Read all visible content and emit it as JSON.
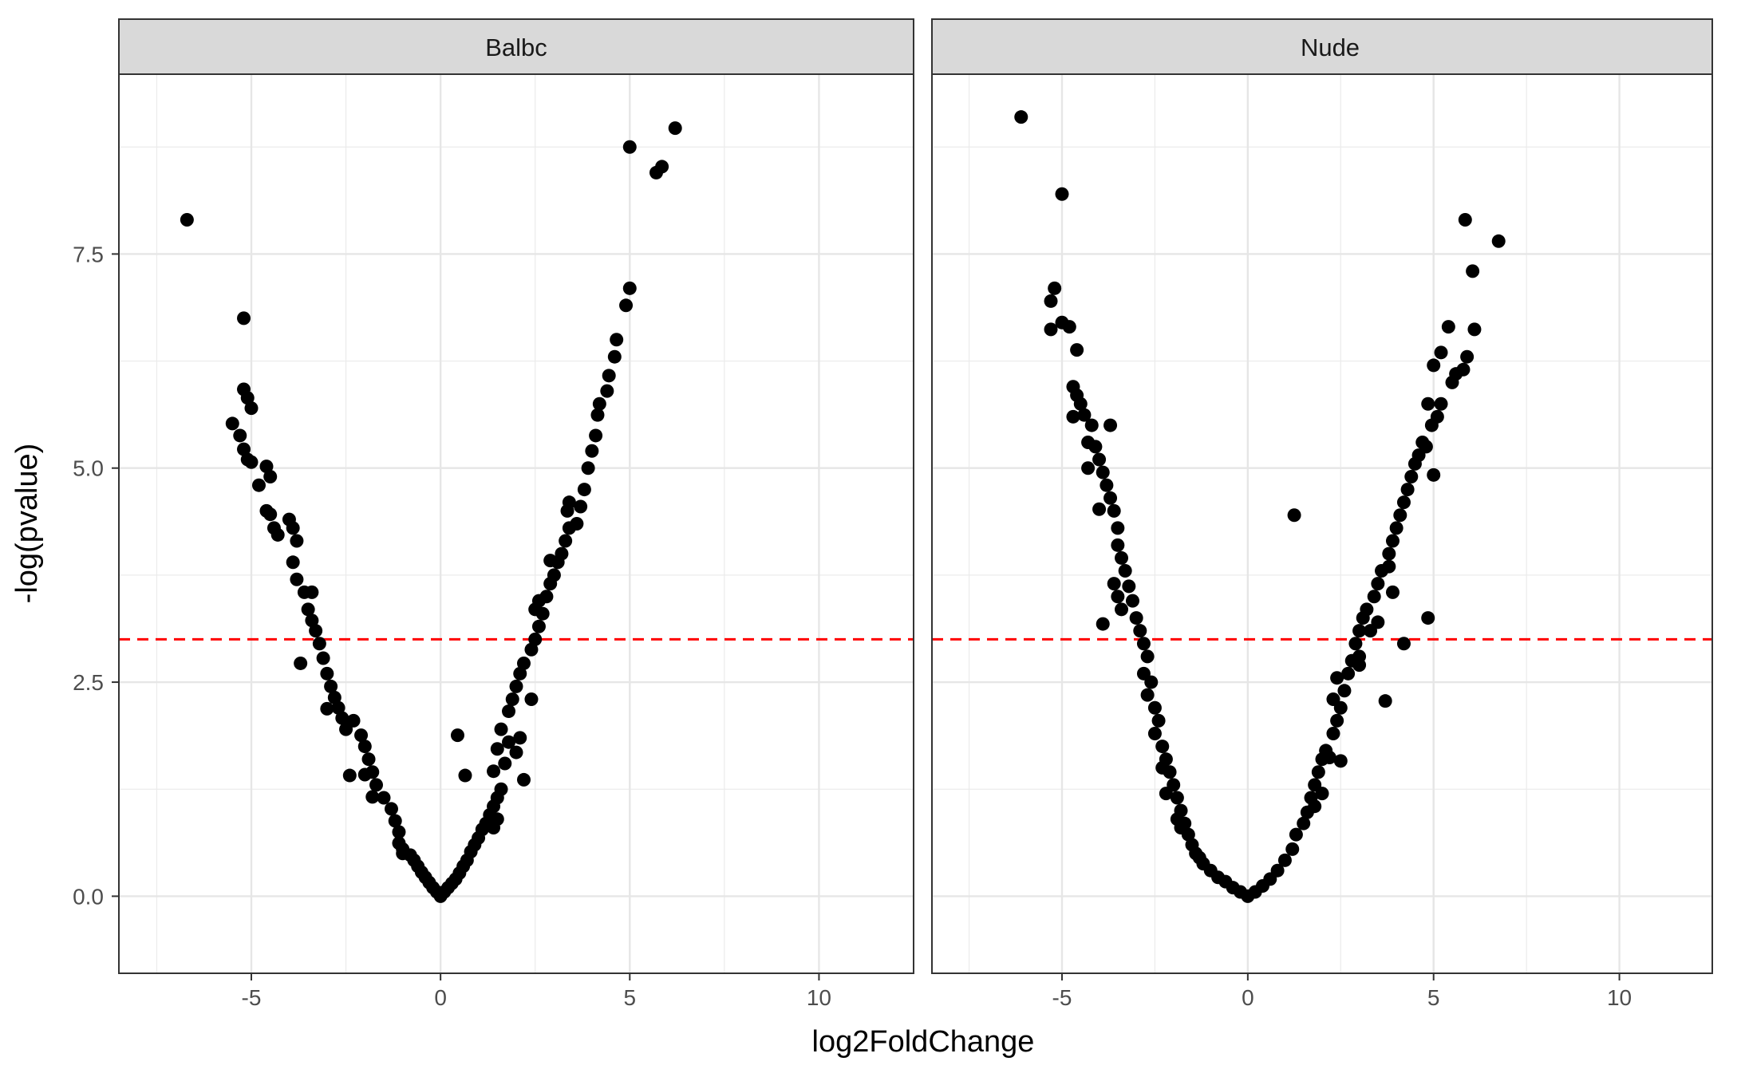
{
  "chart_data": {
    "type": "scatter",
    "xlabel": "log2FoldChange",
    "ylabel": "-log(pvalue)",
    "xlim": [
      -8.5,
      12.5
    ],
    "ylim": [
      -0.9,
      9.6
    ],
    "x_ticks": [
      -5,
      0,
      5,
      10
    ],
    "x_tick_labels": [
      "-5",
      "0",
      "5",
      "10"
    ],
    "y_ticks": [
      0,
      2.5,
      5,
      7.5
    ],
    "y_tick_labels": [
      "0.0",
      "2.5",
      "5.0",
      "7.5"
    ],
    "grid": true,
    "threshold_line": {
      "y": 3,
      "style": "dashed",
      "color": "#ff0000"
    },
    "point_color": "#000000",
    "panels": [
      {
        "name": "Balbc",
        "points": [
          [
            -6.7,
            7.9
          ],
          [
            -5.2,
            6.75
          ],
          [
            -5.2,
            5.92
          ],
          [
            -5.1,
            5.82
          ],
          [
            -5.0,
            5.7
          ],
          [
            -5.5,
            5.52
          ],
          [
            -5.3,
            5.38
          ],
          [
            -5.2,
            5.22
          ],
          [
            -5.1,
            5.1
          ],
          [
            -5.0,
            5.07
          ],
          [
            -4.8,
            4.8
          ],
          [
            -4.6,
            5.02
          ],
          [
            -4.5,
            4.9
          ],
          [
            -4.6,
            4.5
          ],
          [
            -4.5,
            4.46
          ],
          [
            -4.4,
            4.3
          ],
          [
            -4.3,
            4.22
          ],
          [
            -4.0,
            4.4
          ],
          [
            -3.9,
            4.3
          ],
          [
            -3.8,
            4.15
          ],
          [
            -3.9,
            3.9
          ],
          [
            -3.8,
            3.7
          ],
          [
            -3.6,
            3.55
          ],
          [
            -3.4,
            3.55
          ],
          [
            -3.5,
            3.35
          ],
          [
            -3.4,
            3.22
          ],
          [
            -3.3,
            3.1
          ],
          [
            -3.2,
            2.95
          ],
          [
            -3.1,
            2.78
          ],
          [
            -3.7,
            2.72
          ],
          [
            -3.0,
            2.6
          ],
          [
            -2.9,
            2.45
          ],
          [
            -2.8,
            2.32
          ],
          [
            -2.7,
            2.2
          ],
          [
            -3.0,
            2.19
          ],
          [
            -2.6,
            2.08
          ],
          [
            -2.5,
            1.95
          ],
          [
            -2.3,
            2.05
          ],
          [
            -2.1,
            1.88
          ],
          [
            -2.0,
            1.75
          ],
          [
            -1.9,
            1.6
          ],
          [
            -1.8,
            1.45
          ],
          [
            -2.4,
            1.41
          ],
          [
            -2.0,
            1.42
          ],
          [
            -1.7,
            1.3
          ],
          [
            -1.8,
            1.16
          ],
          [
            -1.5,
            1.15
          ],
          [
            -1.3,
            1.02
          ],
          [
            -1.2,
            0.88
          ],
          [
            -1.1,
            0.75
          ],
          [
            -1.1,
            0.62
          ],
          [
            -1.0,
            0.55
          ],
          [
            -1.0,
            0.5
          ],
          [
            -0.8,
            0.48
          ],
          [
            -0.7,
            0.42
          ],
          [
            -0.6,
            0.35
          ],
          [
            -0.5,
            0.28
          ],
          [
            -0.4,
            0.22
          ],
          [
            -0.3,
            0.16
          ],
          [
            -0.2,
            0.1
          ],
          [
            -0.1,
            0.05
          ],
          [
            0.0,
            0.0
          ],
          [
            0.1,
            0.05
          ],
          [
            0.2,
            0.1
          ],
          [
            0.3,
            0.15
          ],
          [
            0.4,
            0.2
          ],
          [
            0.5,
            0.27
          ],
          [
            0.6,
            0.35
          ],
          [
            0.7,
            0.42
          ],
          [
            0.8,
            0.52
          ],
          [
            0.9,
            0.6
          ],
          [
            1.0,
            0.68
          ],
          [
            1.1,
            0.78
          ],
          [
            1.2,
            0.85
          ],
          [
            1.3,
            0.95
          ],
          [
            1.4,
            1.05
          ],
          [
            1.5,
            1.15
          ],
          [
            1.6,
            1.25
          ],
          [
            1.5,
            0.9
          ],
          [
            1.4,
            0.8
          ],
          [
            0.45,
            1.88
          ],
          [
            0.65,
            1.41
          ],
          [
            1.5,
            1.72
          ],
          [
            1.6,
            1.95
          ],
          [
            1.8,
            1.8
          ],
          [
            2.1,
            1.85
          ],
          [
            2.0,
            1.68
          ],
          [
            2.2,
            1.36
          ],
          [
            1.4,
            1.46
          ],
          [
            1.7,
            1.55
          ],
          [
            2.4,
            2.3
          ],
          [
            1.8,
            2.16
          ],
          [
            1.9,
            2.3
          ],
          [
            2.0,
            2.45
          ],
          [
            2.1,
            2.6
          ],
          [
            2.2,
            2.72
          ],
          [
            2.4,
            2.88
          ],
          [
            2.5,
            3.0
          ],
          [
            2.6,
            3.15
          ],
          [
            2.7,
            3.3
          ],
          [
            2.5,
            3.35
          ],
          [
            2.6,
            3.45
          ],
          [
            2.8,
            3.5
          ],
          [
            2.9,
            3.65
          ],
          [
            3.0,
            3.75
          ],
          [
            3.1,
            3.9
          ],
          [
            2.9,
            3.92
          ],
          [
            3.2,
            4.0
          ],
          [
            3.3,
            4.15
          ],
          [
            3.4,
            4.3
          ],
          [
            3.35,
            4.5
          ],
          [
            3.4,
            4.6
          ],
          [
            3.6,
            4.35
          ],
          [
            3.7,
            4.55
          ],
          [
            3.8,
            4.75
          ],
          [
            3.9,
            5.0
          ],
          [
            4.0,
            5.2
          ],
          [
            4.1,
            5.38
          ],
          [
            4.15,
            5.62
          ],
          [
            4.2,
            5.75
          ],
          [
            4.4,
            5.9
          ],
          [
            4.45,
            6.08
          ],
          [
            4.6,
            6.3
          ],
          [
            4.65,
            6.5
          ],
          [
            4.9,
            6.9
          ],
          [
            5.0,
            7.1
          ],
          [
            5.0,
            8.75
          ],
          [
            5.7,
            8.45
          ],
          [
            5.85,
            8.52
          ],
          [
            6.2,
            8.97
          ]
        ]
      },
      {
        "name": "Nude",
        "points": [
          [
            -6.1,
            9.1
          ],
          [
            -5.0,
            8.2
          ],
          [
            -5.2,
            7.1
          ],
          [
            -5.3,
            6.95
          ],
          [
            -5.3,
            6.62
          ],
          [
            -5.0,
            6.7
          ],
          [
            -4.8,
            6.65
          ],
          [
            -4.6,
            6.38
          ],
          [
            -4.7,
            5.95
          ],
          [
            -4.6,
            5.85
          ],
          [
            -4.5,
            5.75
          ],
          [
            -4.7,
            5.6
          ],
          [
            -4.4,
            5.62
          ],
          [
            -4.2,
            5.5
          ],
          [
            -3.7,
            5.5
          ],
          [
            -4.3,
            5.3
          ],
          [
            -4.1,
            5.25
          ],
          [
            -4.0,
            5.1
          ],
          [
            -4.3,
            5.0
          ],
          [
            -3.9,
            4.95
          ],
          [
            -3.8,
            4.8
          ],
          [
            -3.7,
            4.65
          ],
          [
            -4.0,
            4.52
          ],
          [
            -3.6,
            4.5
          ],
          [
            -3.5,
            4.3
          ],
          [
            -3.5,
            4.1
          ],
          [
            -3.4,
            3.95
          ],
          [
            -3.3,
            3.8
          ],
          [
            -3.2,
            3.62
          ],
          [
            -3.6,
            3.65
          ],
          [
            -3.5,
            3.5
          ],
          [
            -3.1,
            3.45
          ],
          [
            -3.4,
            3.35
          ],
          [
            -3.0,
            3.25
          ],
          [
            -3.9,
            3.18
          ],
          [
            -2.9,
            3.1
          ],
          [
            -2.8,
            2.95
          ],
          [
            -2.7,
            2.8
          ],
          [
            -2.8,
            2.6
          ],
          [
            -2.6,
            2.5
          ],
          [
            -2.7,
            2.35
          ],
          [
            -2.5,
            2.2
          ],
          [
            -2.4,
            2.05
          ],
          [
            -2.5,
            1.9
          ],
          [
            -2.3,
            1.75
          ],
          [
            -2.2,
            1.6
          ],
          [
            -2.3,
            1.5
          ],
          [
            -2.1,
            1.45
          ],
          [
            -2.0,
            1.3
          ],
          [
            -2.2,
            1.2
          ],
          [
            -1.9,
            1.15
          ],
          [
            -1.8,
            1.0
          ],
          [
            -1.9,
            0.9
          ],
          [
            -1.7,
            0.85
          ],
          [
            -1.6,
            0.72
          ],
          [
            -1.8,
            0.8
          ],
          [
            -1.5,
            0.6
          ],
          [
            -1.4,
            0.5
          ],
          [
            -1.3,
            0.45
          ],
          [
            -1.2,
            0.38
          ],
          [
            -1.0,
            0.3
          ],
          [
            -0.8,
            0.22
          ],
          [
            -0.6,
            0.17
          ],
          [
            -0.4,
            0.1
          ],
          [
            -0.2,
            0.05
          ],
          [
            0.0,
            0.0
          ],
          [
            0.2,
            0.05
          ],
          [
            0.4,
            0.12
          ],
          [
            0.6,
            0.2
          ],
          [
            0.8,
            0.3
          ],
          [
            1.0,
            0.42
          ],
          [
            1.2,
            0.55
          ],
          [
            1.3,
            0.72
          ],
          [
            1.5,
            0.85
          ],
          [
            1.6,
            0.98
          ],
          [
            1.7,
            1.15
          ],
          [
            1.8,
            1.3
          ],
          [
            1.9,
            1.45
          ],
          [
            2.0,
            1.6
          ],
          [
            2.1,
            1.7
          ],
          [
            2.2,
            1.62
          ],
          [
            2.5,
            1.58
          ],
          [
            2.0,
            1.2
          ],
          [
            1.8,
            1.05
          ],
          [
            2.3,
            1.9
          ],
          [
            2.4,
            2.05
          ],
          [
            2.5,
            2.2
          ],
          [
            2.3,
            2.3
          ],
          [
            2.6,
            2.4
          ],
          [
            2.4,
            2.55
          ],
          [
            2.7,
            2.6
          ],
          [
            2.8,
            2.75
          ],
          [
            3.0,
            2.8
          ],
          [
            2.9,
            2.95
          ],
          [
            3.0,
            3.1
          ],
          [
            3.1,
            3.25
          ],
          [
            3.3,
            3.1
          ],
          [
            3.5,
            3.2
          ],
          [
            3.2,
            3.35
          ],
          [
            3.4,
            3.5
          ],
          [
            3.5,
            3.65
          ],
          [
            3.6,
            3.8
          ],
          [
            3.8,
            3.85
          ],
          [
            3.9,
            3.55
          ],
          [
            4.2,
            2.95
          ],
          [
            4.85,
            3.25
          ],
          [
            3.7,
            2.28
          ],
          [
            3.0,
            2.7
          ],
          [
            1.25,
            4.45
          ],
          [
            3.8,
            4.0
          ],
          [
            3.9,
            4.15
          ],
          [
            4.0,
            4.3
          ],
          [
            4.1,
            4.45
          ],
          [
            4.2,
            4.6
          ],
          [
            4.3,
            4.75
          ],
          [
            4.4,
            4.9
          ],
          [
            4.5,
            5.05
          ],
          [
            4.6,
            5.15
          ],
          [
            4.7,
            5.3
          ],
          [
            4.8,
            5.25
          ],
          [
            4.85,
            5.75
          ],
          [
            4.95,
            5.5
          ],
          [
            5.0,
            4.92
          ],
          [
            5.1,
            5.6
          ],
          [
            5.2,
            5.75
          ],
          [
            5.0,
            6.2
          ],
          [
            5.2,
            6.35
          ],
          [
            5.5,
            6.0
          ],
          [
            5.6,
            6.1
          ],
          [
            5.8,
            6.15
          ],
          [
            5.4,
            6.65
          ],
          [
            5.9,
            6.3
          ],
          [
            6.05,
            7.3
          ],
          [
            6.1,
            6.62
          ],
          [
            5.85,
            7.9
          ],
          [
            6.75,
            7.65
          ]
        ]
      }
    ]
  }
}
